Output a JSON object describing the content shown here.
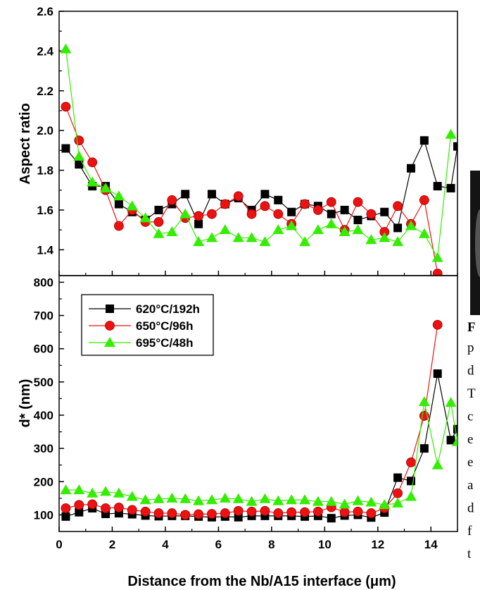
{
  "chart_data": [
    {
      "type": "scatter",
      "panel": "top",
      "xlabel": "",
      "ylabel": "Aspect ratio",
      "xlim": [
        0,
        15
      ],
      "ylim": [
        1.27,
        2.6
      ],
      "y_ticks": [
        "1.4",
        "1.6",
        "1.8",
        "2.0",
        "2.2",
        "2.4",
        "2.6"
      ],
      "y_tick_values": [
        1.4,
        1.6,
        1.8,
        2.0,
        2.2,
        2.4,
        2.6
      ],
      "series": [
        {
          "name": "620°C/192h",
          "color": "#000000",
          "marker": "square",
          "x": [
            0.25,
            0.75,
            1.25,
            1.75,
            2.25,
            2.75,
            3.25,
            3.75,
            4.25,
            4.75,
            5.25,
            5.75,
            6.25,
            6.75,
            7.25,
            7.75,
            8.25,
            8.75,
            9.25,
            9.75,
            10.25,
            10.75,
            11.25,
            11.75,
            12.25,
            12.75,
            13.25,
            13.75,
            14.25,
            14.75,
            15.0
          ],
          "y": [
            1.91,
            1.83,
            1.72,
            1.72,
            1.63,
            1.59,
            1.55,
            1.6,
            1.63,
            1.68,
            1.53,
            1.68,
            1.63,
            1.66,
            1.6,
            1.68,
            1.65,
            1.59,
            1.63,
            1.62,
            1.58,
            1.6,
            1.55,
            1.57,
            1.59,
            1.51,
            1.81,
            1.95,
            1.72,
            1.71,
            1.92
          ]
        },
        {
          "name": "650°C/96h",
          "color": "#ee1111",
          "marker": "circle",
          "x": [
            0.25,
            0.75,
            1.25,
            1.75,
            2.25,
            2.75,
            3.25,
            3.75,
            4.25,
            4.75,
            5.25,
            5.75,
            6.25,
            6.75,
            7.25,
            7.75,
            8.25,
            8.75,
            9.25,
            9.75,
            10.25,
            10.75,
            11.25,
            11.75,
            12.25,
            12.75,
            13.25,
            13.75,
            14.25
          ],
          "y": [
            2.12,
            1.95,
            1.84,
            1.7,
            1.52,
            1.6,
            1.54,
            1.54,
            1.65,
            1.56,
            1.57,
            1.58,
            1.63,
            1.67,
            1.58,
            1.62,
            1.58,
            1.53,
            1.63,
            1.6,
            1.64,
            1.5,
            1.64,
            1.58,
            1.49,
            1.62,
            1.53,
            1.65,
            1.28
          ]
        },
        {
          "name": "695°C/48h",
          "color": "#33ee00",
          "marker": "triangle",
          "x": [
            0.25,
            0.75,
            1.25,
            1.75,
            2.25,
            2.75,
            3.25,
            3.75,
            4.25,
            4.75,
            5.25,
            5.75,
            6.25,
            6.75,
            7.25,
            7.75,
            8.25,
            8.75,
            9.25,
            9.75,
            10.25,
            10.75,
            11.25,
            11.75,
            12.25,
            12.75,
            13.25,
            13.75,
            14.25,
            14.75
          ],
          "y": [
            2.41,
            1.87,
            1.74,
            1.71,
            1.67,
            1.62,
            1.56,
            1.48,
            1.49,
            1.58,
            1.44,
            1.46,
            1.5,
            1.46,
            1.46,
            1.44,
            1.5,
            1.52,
            1.44,
            1.5,
            1.53,
            1.49,
            1.5,
            1.45,
            1.46,
            1.44,
            1.52,
            1.48,
            1.36,
            1.98
          ]
        }
      ]
    },
    {
      "type": "scatter",
      "panel": "bottom",
      "xlabel": "Distance from the Nb/A15 interface (μm)",
      "ylabel": "d* (nm)",
      "xlim": [
        0,
        15
      ],
      "ylim": [
        50,
        820
      ],
      "x_ticks": [
        "0",
        "2",
        "4",
        "6",
        "8",
        "10",
        "12",
        "14"
      ],
      "x_tick_values": [
        0,
        2,
        4,
        6,
        8,
        10,
        12,
        14
      ],
      "y_ticks": [
        "100",
        "200",
        "300",
        "400",
        "500",
        "600",
        "700",
        "800"
      ],
      "y_tick_values": [
        100,
        200,
        300,
        400,
        500,
        600,
        700,
        800
      ],
      "legend_position": "top-left",
      "series": [
        {
          "name": "620°C/192h",
          "color": "#000000",
          "marker": "square",
          "x": [
            0.25,
            0.75,
            1.25,
            1.75,
            2.25,
            2.75,
            3.25,
            3.75,
            4.25,
            4.75,
            5.25,
            5.75,
            6.25,
            6.75,
            7.25,
            7.75,
            8.25,
            8.75,
            9.25,
            9.75,
            10.25,
            10.75,
            11.25,
            11.75,
            12.25,
            12.75,
            13.25,
            13.75,
            14.25,
            14.75,
            15.0
          ],
          "y": [
            95,
            108,
            120,
            103,
            105,
            102,
            98,
            96,
            97,
            97,
            95,
            93,
            95,
            93,
            97,
            97,
            97,
            97,
            95,
            97,
            90,
            98,
            100,
            92,
            107,
            212,
            202,
            300,
            525,
            325,
            358
          ]
        },
        {
          "name": "650°C/96h",
          "color": "#ee1111",
          "marker": "circle",
          "x": [
            0.25,
            0.75,
            1.25,
            1.75,
            2.25,
            2.75,
            3.25,
            3.75,
            4.25,
            4.75,
            5.25,
            5.75,
            6.25,
            6.75,
            7.25,
            7.75,
            8.25,
            8.75,
            9.25,
            9.75,
            10.25,
            10.75,
            11.25,
            11.75,
            12.25,
            12.75,
            13.25,
            13.75,
            14.25
          ],
          "y": [
            120,
            130,
            132,
            120,
            122,
            115,
            110,
            105,
            105,
            100,
            102,
            103,
            105,
            112,
            110,
            112,
            105,
            108,
            108,
            110,
            123,
            108,
            110,
            105,
            120,
            165,
            258,
            398,
            672
          ]
        },
        {
          "name": "695°C/48h",
          "color": "#33ee00",
          "marker": "triangle",
          "x": [
            0.25,
            0.75,
            1.25,
            1.75,
            2.25,
            2.75,
            3.25,
            3.75,
            4.25,
            4.75,
            5.25,
            5.75,
            6.25,
            6.75,
            7.25,
            7.75,
            8.25,
            8.75,
            9.25,
            9.75,
            10.25,
            10.75,
            11.25,
            11.75,
            12.25,
            12.75,
            13.25,
            13.75,
            14.25,
            14.75,
            15.0
          ],
          "y": [
            175,
            175,
            165,
            170,
            165,
            155,
            145,
            148,
            150,
            148,
            142,
            145,
            150,
            148,
            140,
            148,
            142,
            145,
            145,
            140,
            140,
            132,
            142,
            138,
            130,
            135,
            155,
            440,
            250,
            438,
            320
          ]
        }
      ]
    }
  ],
  "side_text": {
    "caption_fragment": "F",
    "line_fragments": [
      "p",
      "d",
      "T",
      "c",
      "e",
      "e",
      "a",
      "d",
      "f",
      "t"
    ]
  }
}
